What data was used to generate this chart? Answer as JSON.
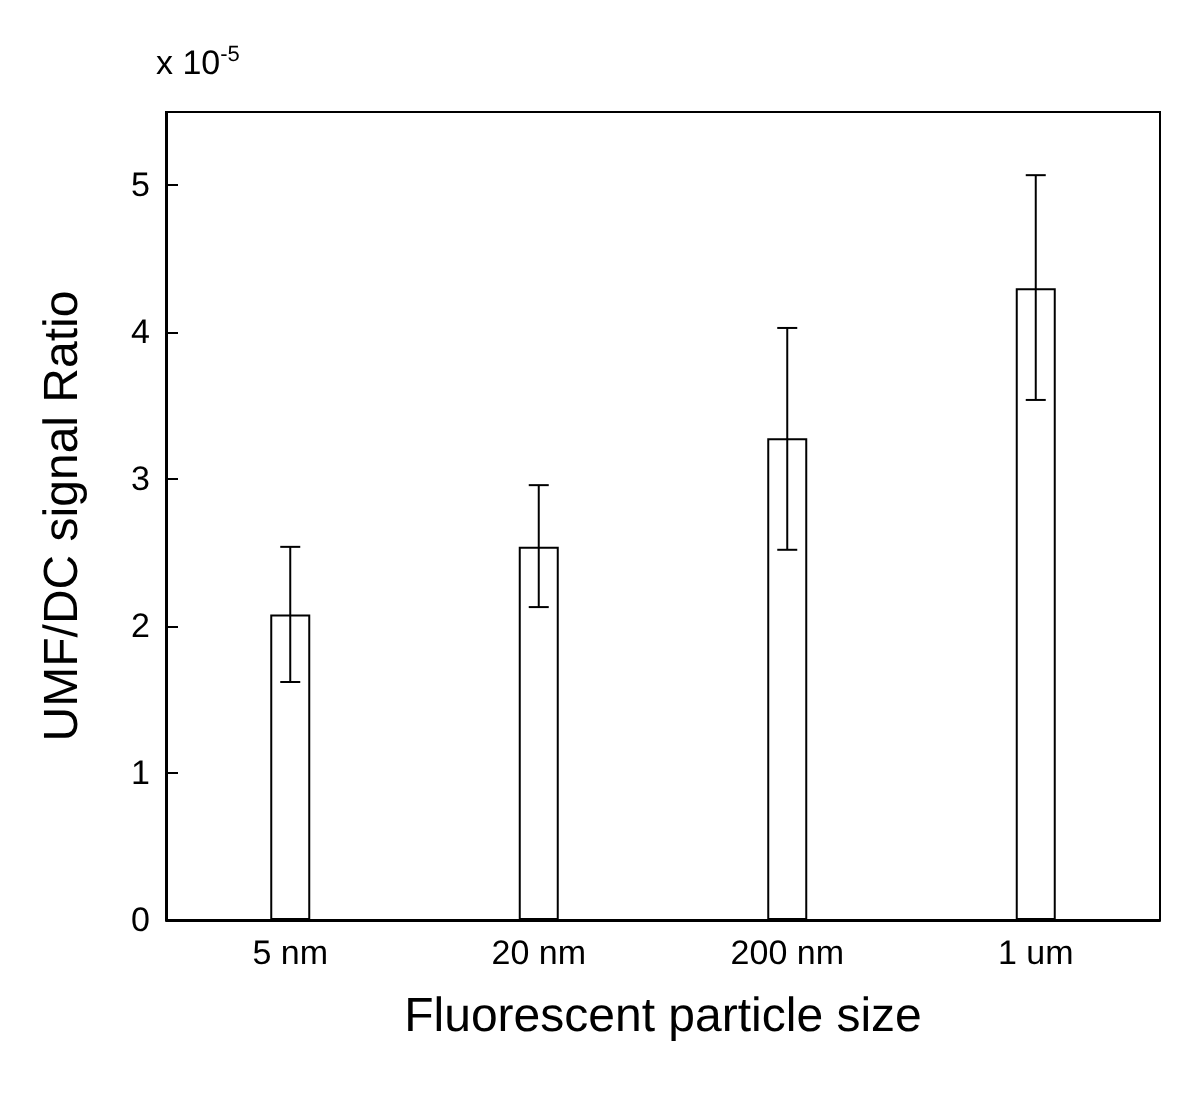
{
  "chart_data": {
    "type": "bar",
    "xlabel": "Fluorescent particle size",
    "ylabel": "UMF/DC signal Ratio",
    "annotations": [
      "x 10$^{-5}$"
    ],
    "categories": [
      "5 nm",
      "20 nm",
      "200 nm",
      "1 um"
    ],
    "values": [
      2.08,
      2.54,
      3.28,
      4.3
    ],
    "errors": [
      [
        1.62,
        2.54
      ],
      [
        2.13,
        2.96
      ],
      [
        2.52,
        4.03
      ],
      [
        3.54,
        5.07
      ]
    ],
    "color": "#ffffff",
    "ylim": [
      0,
      5.5
    ],
    "yticks": [
      0,
      1,
      2,
      3,
      4,
      5
    ],
    "grid": false
  }
}
